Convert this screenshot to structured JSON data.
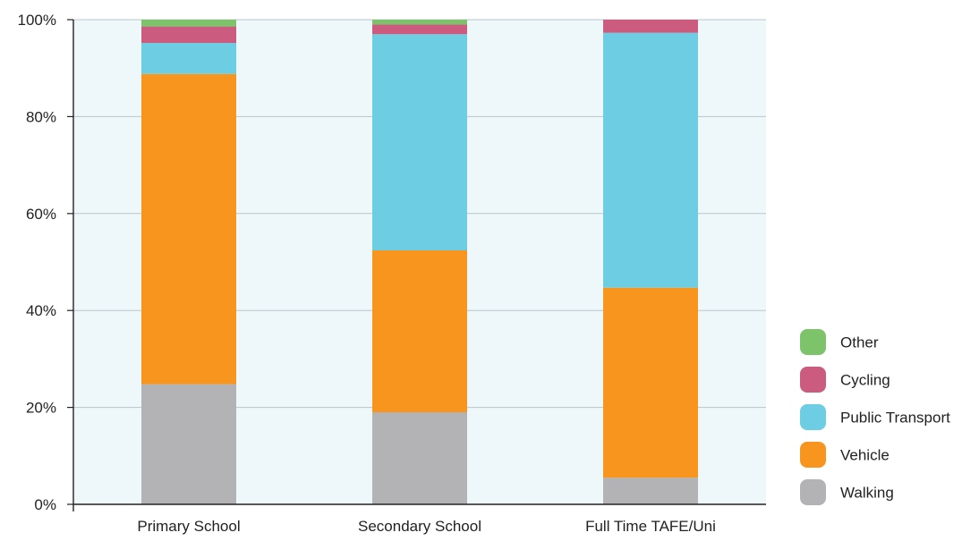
{
  "chart_data": {
    "type": "bar",
    "stacked": true,
    "categories": [
      "Primary School",
      "Secondary School",
      "Full Time TAFE/Uni"
    ],
    "series": [
      {
        "name": "Walking",
        "color": "#b3b3b5",
        "values": [
          24.8,
          19.0,
          5.5
        ]
      },
      {
        "name": "Vehicle",
        "color": "#f7951f",
        "values": [
          64.0,
          33.4,
          39.2
        ]
      },
      {
        "name": "Public Transport",
        "color": "#6dcde2",
        "values": [
          6.4,
          44.6,
          52.6
        ]
      },
      {
        "name": "Cycling",
        "color": "#cc5b80",
        "values": [
          3.4,
          2.0,
          2.7
        ]
      },
      {
        "name": "Other",
        "color": "#7cc36a",
        "values": [
          1.4,
          1.0,
          0.0
        ]
      }
    ],
    "legend_order": [
      "Other",
      "Cycling",
      "Public Transport",
      "Vehicle",
      "Walking"
    ],
    "y_ticks": [
      "0%",
      "20%",
      "40%",
      "60%",
      "80%",
      "100%"
    ],
    "ylim": [
      0,
      100
    ],
    "grid": true,
    "legend_position": "right",
    "plot_background": "#eef8fa"
  }
}
